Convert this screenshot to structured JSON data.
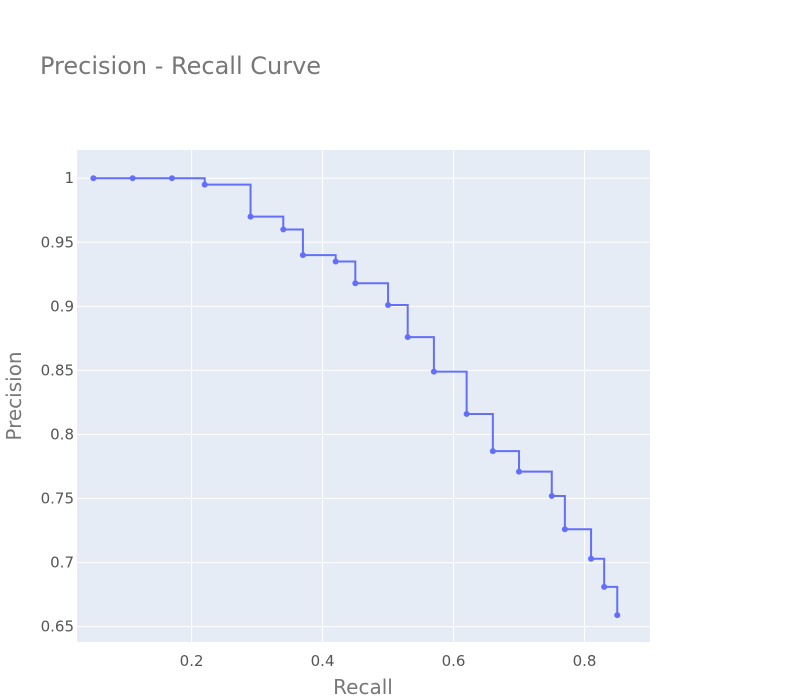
{
  "chart_data": {
    "type": "line",
    "title": "Precision - Recall Curve",
    "xlabel": "Recall",
    "ylabel": "Precision",
    "xlim": [
      0.025,
      0.9
    ],
    "ylim": [
      0.638,
      1.022
    ],
    "x_ticks": [
      0.2,
      0.4,
      0.6,
      0.8
    ],
    "y_ticks": [
      0.65,
      0.7,
      0.75,
      0.8,
      0.85,
      0.9,
      0.95,
      1
    ],
    "grid": true,
    "line_shape": "step",
    "line_color": "#636efa",
    "plot_background": "#e5ecf6",
    "series": [
      {
        "name": "",
        "x": [
          0.05,
          0.11,
          0.17,
          0.22,
          0.29,
          0.34,
          0.37,
          0.42,
          0.45,
          0.5,
          0.53,
          0.57,
          0.62,
          0.66,
          0.7,
          0.75,
          0.77,
          0.81,
          0.83,
          0.85
        ],
        "y": [
          1.0,
          1.0,
          1.0,
          0.995,
          0.97,
          0.96,
          0.94,
          0.935,
          0.918,
          0.901,
          0.876,
          0.849,
          0.816,
          0.787,
          0.771,
          0.752,
          0.726,
          0.703,
          0.681,
          0.659
        ]
      }
    ]
  }
}
